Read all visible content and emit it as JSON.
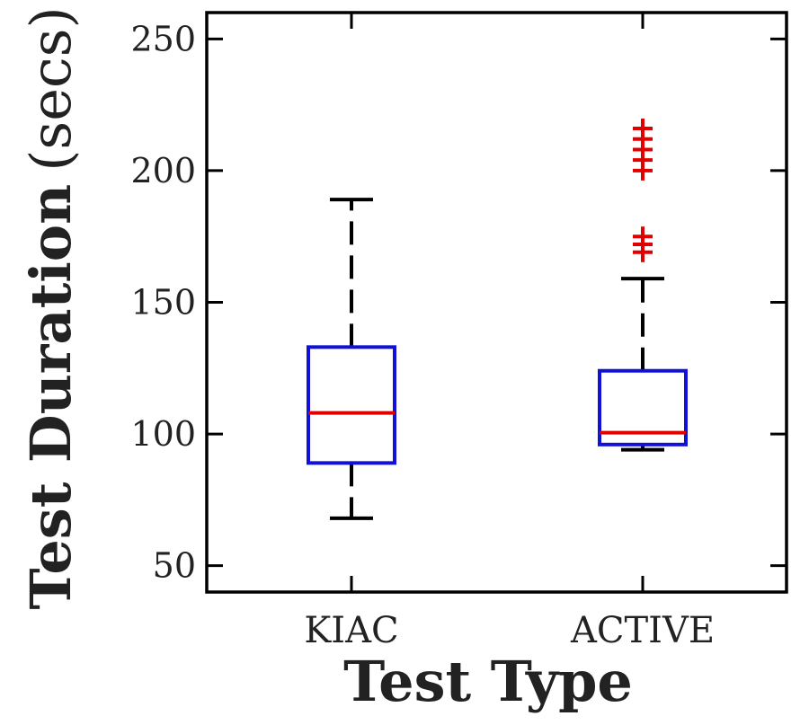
{
  "chart_data": {
    "type": "boxplot",
    "categories": [
      "KIAC",
      "ACTIVE"
    ],
    "xlabel": "Test Type",
    "ylabel": "Test Duration",
    "ylabel_unit": "(secs)",
    "ylim": [
      40,
      260
    ],
    "yticks": [
      50,
      100,
      150,
      200,
      250
    ],
    "grid": false,
    "boxes": [
      {
        "category": "KIAC",
        "whisker_low": 68,
        "q1": 89,
        "median": 108,
        "q3": 133,
        "whisker_high": 189,
        "outliers": []
      },
      {
        "category": "ACTIVE",
        "whisker_low": 94,
        "q1": 96,
        "median": 100.5,
        "q3": 124,
        "whisker_high": 159,
        "outliers": [
          169,
          172,
          175,
          200,
          204,
          208,
          212,
          216
        ]
      }
    ],
    "colors": {
      "box": "#1010d8",
      "median": "#e00000",
      "whisker": "#000000",
      "outlier": "#e00000",
      "axes": "#000000"
    }
  }
}
